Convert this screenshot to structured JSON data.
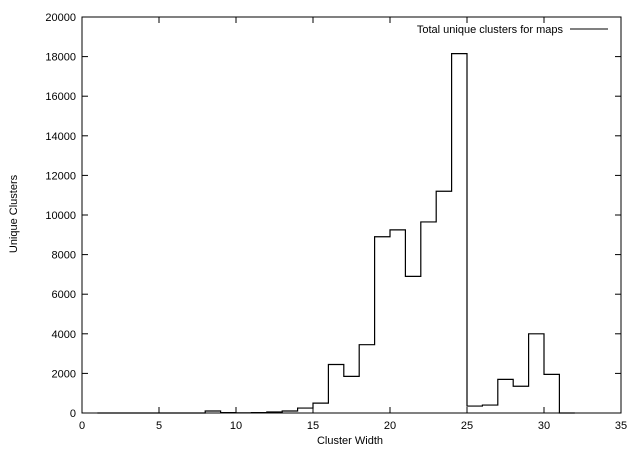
{
  "chart_data": {
    "type": "histogram-step",
    "title": "",
    "xlabel": "Cluster Width",
    "ylabel": "Unique Clusters",
    "xlim": [
      0,
      35
    ],
    "ylim": [
      0,
      20000
    ],
    "xticks": [
      0,
      5,
      10,
      15,
      20,
      25,
      30,
      35
    ],
    "yticks": [
      0,
      2000,
      4000,
      6000,
      8000,
      10000,
      12000,
      14000,
      16000,
      18000,
      20000
    ],
    "grid": false,
    "legend": {
      "position": "top-right",
      "entries": [
        "Total unique clusters for maps"
      ]
    },
    "series": [
      {
        "name": "Total unique clusters for maps",
        "bin_width": 1,
        "bin_start": [
          1,
          2,
          3,
          4,
          5,
          6,
          7,
          8,
          9,
          10,
          11,
          12,
          13,
          14,
          15,
          16,
          17,
          18,
          19,
          20,
          21,
          22,
          23,
          24,
          25,
          26,
          27,
          28,
          29,
          30,
          31
        ],
        "values": [
          0,
          0,
          0,
          0,
          0,
          0,
          0,
          100,
          20,
          10,
          20,
          50,
          100,
          250,
          500,
          2450,
          1850,
          3450,
          8900,
          9250,
          6900,
          9650,
          11200,
          18150,
          350,
          400,
          1700,
          1350,
          4000,
          1950,
          0
        ]
      }
    ]
  }
}
